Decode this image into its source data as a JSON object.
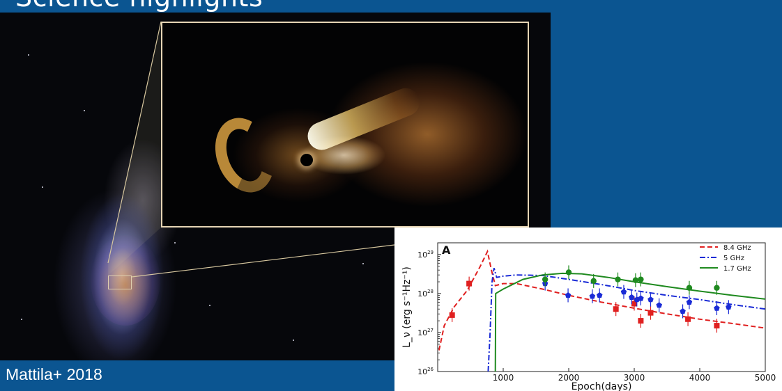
{
  "slide": {
    "title": "Science highlights",
    "credit": "Mattila+ 2018"
  },
  "images": {
    "galaxy": "galaxy-merger-image",
    "inset": "tidal-disruption-jet-illustration"
  },
  "chart_data": {
    "type": "line",
    "panel_label": "A",
    "xlabel": "Epoch(days)",
    "ylabel": "L_ν (erg s⁻¹Hz⁻¹)",
    "xlim": [
      0,
      5000
    ],
    "ylim": [
      1e+26,
      2e+29
    ],
    "yscale": "log",
    "x_ticks": [
      "1000",
      "2000",
      "3000",
      "4000",
      "5000"
    ],
    "y_ticks": [
      {
        "base": "10",
        "exp": "26",
        "value": 1e+26
      },
      {
        "base": "10",
        "exp": "27",
        "value": 1e+27
      },
      {
        "base": "10",
        "exp": "28",
        "value": 1e+28
      },
      {
        "base": "10",
        "exp": "29",
        "value": 1e+29
      }
    ],
    "legend_position": "top-right",
    "series": [
      {
        "name": "8.4 GHz",
        "color": "#e02020",
        "dash": "dashed",
        "marker": "square",
        "model": [
          [
            20,
            3.5e+26
          ],
          [
            100,
            1.5e+27
          ],
          [
            250,
            4.5e+27
          ],
          [
            450,
            1.2e+28
          ],
          [
            650,
            5e+28
          ],
          [
            760,
            1.2e+29
          ],
          [
            820,
            4e+28
          ],
          [
            880,
            1.6e+28
          ],
          [
            1000,
            1.8e+28
          ],
          [
            1200,
            1.8e+28
          ],
          [
            1600,
            1.3e+28
          ],
          [
            2000,
            9e+27
          ],
          [
            2500,
            6e+27
          ],
          [
            3000,
            4.2e+27
          ],
          [
            3500,
            3e+27
          ],
          [
            4000,
            2.2e+27
          ],
          [
            4500,
            1.7e+27
          ],
          [
            5000,
            1.3e+27
          ]
        ],
        "observations": [
          [
            220,
            2.8e+27
          ],
          [
            480,
            1.8e+28
          ],
          [
            2720,
            4e+27
          ],
          [
            3000,
            5.5e+27
          ],
          [
            3100,
            2e+27
          ],
          [
            3250,
            3.2e+27
          ],
          [
            3820,
            2.2e+27
          ],
          [
            4260,
            1.5e+27
          ]
        ]
      },
      {
        "name": "5 GHz",
        "color": "#1a2bd6",
        "dash": "dashdot",
        "marker": "pentagon",
        "model": [
          [
            770,
            1e+26
          ],
          [
            800,
            1e+27
          ],
          [
            830,
            2e+28
          ],
          [
            860,
            4.5e+28
          ],
          [
            900,
            2.6e+28
          ],
          [
            1000,
            2.8e+28
          ],
          [
            1200,
            3e+28
          ],
          [
            1600,
            2.9e+28
          ],
          [
            2000,
            2.3e+28
          ],
          [
            2500,
            1.7e+28
          ],
          [
            3000,
            1.2e+28
          ],
          [
            3500,
            9e+27
          ],
          [
            4000,
            7e+27
          ],
          [
            4500,
            5.2e+27
          ],
          [
            5000,
            4e+27
          ]
        ],
        "observations": [
          [
            1640,
            1.8e+28
          ],
          [
            1990,
            9e+27
          ],
          [
            2360,
            8.5e+27
          ],
          [
            2470,
            9e+27
          ],
          [
            2840,
            1.1e+28
          ],
          [
            2960,
            8e+27
          ],
          [
            3040,
            7e+27
          ],
          [
            3100,
            7.5e+27
          ],
          [
            3250,
            7e+27
          ],
          [
            3380,
            5e+27
          ],
          [
            3740,
            3.5e+27
          ],
          [
            3840,
            6e+27
          ],
          [
            4260,
            4.2e+27
          ],
          [
            4440,
            4.5e+27
          ]
        ]
      },
      {
        "name": "1.7 GHz",
        "color": "#1f8a1f",
        "dash": "solid",
        "marker": "circle",
        "model": [
          [
            880,
            1e+26
          ],
          [
            885,
            1e+28
          ],
          [
            1000,
            1.3e+28
          ],
          [
            1300,
            2.3e+28
          ],
          [
            1600,
            3e+28
          ],
          [
            1900,
            3.3e+28
          ],
          [
            2200,
            3.2e+28
          ],
          [
            2600,
            2.6e+28
          ],
          [
            3000,
            2e+28
          ],
          [
            3500,
            1.5e+28
          ],
          [
            4000,
            1.15e+28
          ],
          [
            4500,
            9e+27
          ],
          [
            5000,
            7.2e+27
          ]
        ],
        "observations": [
          [
            1640,
            2.3e+28
          ],
          [
            2000,
            3.5e+28
          ],
          [
            2380,
            2.1e+28
          ],
          [
            2750,
            2.3e+28
          ],
          [
            3020,
            2.2e+28
          ],
          [
            3100,
            2.3e+28
          ],
          [
            3840,
            1.4e+28
          ],
          [
            4260,
            1.4e+28
          ]
        ]
      }
    ]
  }
}
